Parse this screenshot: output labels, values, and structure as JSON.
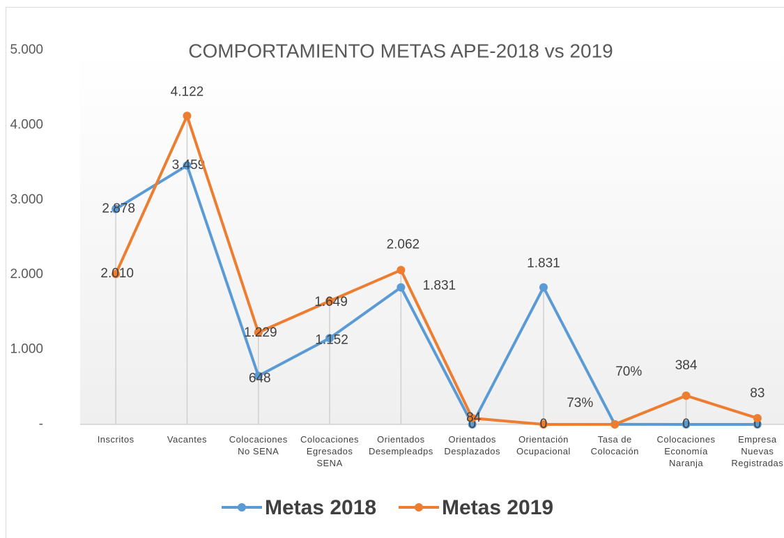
{
  "chart_data": {
    "type": "line",
    "title": "COMPORTAMIENTO METAS APE-2018 vs 2019",
    "categories": [
      "Inscritos",
      "Vacantes",
      "Colocaciones No SENA",
      "Colocaciones Egresados SENA",
      "Orientados Desempleadps",
      "Orientados Desplazados",
      "Orientación Ocupacional",
      "Tasa de Colocación",
      "Colocaciones Economía Naranja",
      "Empresa Nuevas Registradas"
    ],
    "series": [
      {
        "name": "Metas 2018",
        "color": "#5b9bd5",
        "values": [
          2878,
          3459,
          648,
          1152,
          1831,
          0,
          1831,
          0.73,
          0,
          0
        ],
        "value_labels": [
          "2.878",
          "3.459",
          "648",
          "1.152",
          "1.831",
          "0",
          "1.831",
          "73%",
          "0",
          "0"
        ]
      },
      {
        "name": "Metas 2019",
        "color": "#ed7d31",
        "values": [
          2010,
          4122,
          1229,
          1649,
          2062,
          84,
          0,
          0.7,
          384,
          83
        ],
        "value_labels": [
          "2.010",
          "4.122",
          "1.229",
          "1.649",
          "2.062",
          "84",
          "0",
          "70%",
          "384",
          "83"
        ]
      }
    ],
    "ylim": [
      0,
      5000
    ],
    "yticks": [
      {
        "value": 0,
        "label": "-"
      },
      {
        "value": 1000,
        "label": "1.000"
      },
      {
        "value": 2000,
        "label": "2.000"
      },
      {
        "value": 3000,
        "label": "3.000"
      },
      {
        "value": 4000,
        "label": "4.000"
      },
      {
        "value": 5000,
        "label": "5.000"
      }
    ],
    "legend": "bottom",
    "drop_lines": true
  }
}
